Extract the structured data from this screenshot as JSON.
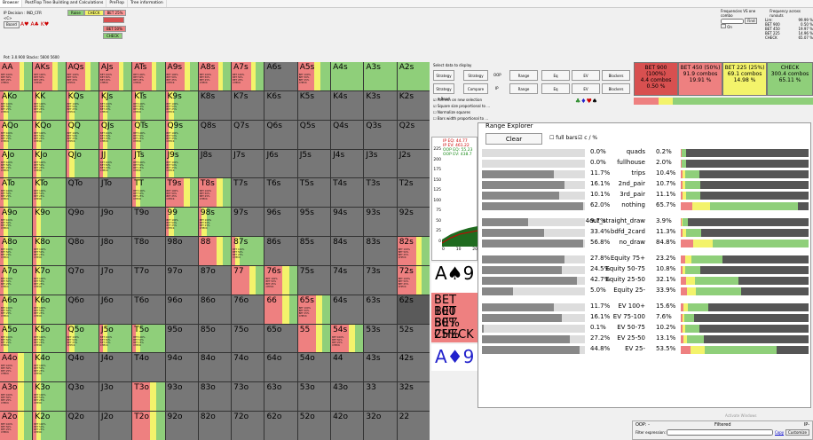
{
  "tabs": [
    "Browser",
    "PostFlop Tree Building and Calculations",
    "PreFlop",
    "Tree information"
  ],
  "info": {
    "decision": "IP Decision : IND_CFR",
    "cards": "<C>",
    "board_btn": "Board",
    "board": "A♥ A♣ K♥",
    "potstacks": "Pot: 3.0.900 Stacks: 5600 5600"
  },
  "legend": [
    {
      "label": "Raise",
      "color": "#7fbf6f"
    },
    {
      "label": "CHECK",
      "color": "#f5f56a"
    },
    {
      "label": "BET 25%",
      "color": "#ff9999"
    },
    {
      "label": "BET 50%",
      "color": "#e06666"
    },
    {
      "label": "CHECK",
      "color": "#7fbf6f"
    }
  ],
  "freq": {
    "title": "Frequencies VS one combo",
    "title2": "Frequency across runouts",
    "find_btn": "Find",
    "lines": [
      "Lim:",
      "BET 900",
      "BET 450",
      "BET 225",
      "CHECK"
    ],
    "vals": [
      "99.99 %",
      "0.50 %",
      "19.97 %",
      "14.96 %",
      "65.07 %"
    ],
    "on": "On"
  },
  "grid": [
    [
      "AA",
      "AKs",
      "AQs",
      "AJs",
      "ATs",
      "A9s",
      "A8s",
      "A7s",
      "A6s",
      "A5s",
      "A4s",
      "A3s",
      "A2s"
    ],
    [
      "AKo",
      "KK",
      "KQs",
      "KJs",
      "KTs",
      "K9s",
      "K8s",
      "K7s",
      "K6s",
      "K5s",
      "K4s",
      "K3s",
      "K2s"
    ],
    [
      "AQo",
      "KQo",
      "QQ",
      "QJs",
      "QTs",
      "Q9s",
      "Q8s",
      "Q7s",
      "Q6s",
      "Q5s",
      "Q4s",
      "Q3s",
      "Q2s"
    ],
    [
      "AJo",
      "KJo",
      "QJo",
      "JJ",
      "JTs",
      "J9s",
      "J8s",
      "J7s",
      "J6s",
      "J5s",
      "J4s",
      "J3s",
      "J2s"
    ],
    [
      "ATo",
      "KTo",
      "QTo",
      "JTo",
      "TT",
      "T9s",
      "T8s",
      "T7s",
      "T6s",
      "T5s",
      "T4s",
      "T3s",
      "T2s"
    ],
    [
      "A9o",
      "K9o",
      "Q9o",
      "J9o",
      "T9o",
      "99",
      "98s",
      "97s",
      "96s",
      "95s",
      "94s",
      "93s",
      "92s"
    ],
    [
      "A8o",
      "K8o",
      "Q8o",
      "J8o",
      "T8o",
      "98o",
      "88",
      "87s",
      "86s",
      "85s",
      "84s",
      "83s",
      "82s"
    ],
    [
      "A7o",
      "K7o",
      "Q7o",
      "J7o",
      "T7o",
      "97o",
      "87o",
      "77",
      "76s",
      "75s",
      "74s",
      "73s",
      "72s"
    ],
    [
      "A6o",
      "K6o",
      "Q6o",
      "J6o",
      "T6o",
      "96o",
      "86o",
      "76o",
      "66",
      "65s",
      "64s",
      "63s",
      "62s"
    ],
    [
      "A5o",
      "K5o",
      "Q5o",
      "J5o",
      "T5o",
      "95o",
      "85o",
      "75o",
      "65o",
      "55",
      "54s",
      "53s",
      "52s"
    ],
    [
      "A4o",
      "K4o",
      "Q4o",
      "J4o",
      "T4o",
      "94o",
      "84o",
      "74o",
      "64o",
      "54o",
      "44",
      "43s",
      "42s"
    ],
    [
      "A3o",
      "K3o",
      "Q3o",
      "J3o",
      "T3o",
      "93o",
      "83o",
      "73o",
      "63o",
      "53o",
      "43o",
      "33",
      "32s"
    ],
    [
      "A2o",
      "K2o",
      "Q2o",
      "J2o",
      "T2o",
      "92o",
      "82o",
      "72o",
      "62o",
      "52o",
      "42o",
      "32o",
      "22"
    ]
  ],
  "cellstats": "BET 100%\nBET 50%\nBET 25%\nCHECK",
  "colors": {
    "green": "#8fcf7a",
    "yellow": "#f3f36b",
    "red": "#ee8080",
    "darkred": "#d85050",
    "gray": "#777",
    "dim": "#5a5a5a"
  },
  "panel": {
    "select_label": "Select data to display",
    "btns": [
      "Strategy",
      "Strategy +EV",
      "OOP",
      "Range",
      "Eq",
      "EV",
      "Blockers",
      "Strategy +Read",
      "Compare",
      "IP",
      "Range",
      "Eq",
      "EV",
      "Blockers"
    ],
    "checks": [
      "Refresh on new selection",
      "Square size proportional to ...",
      "Normalize squares",
      "Bars width proportional to ..."
    ],
    "summary": [
      {
        "a": "BET 900 (100%)",
        "b": "4.4 combos",
        "c": "0.50 %",
        "bg": "#d85050"
      },
      {
        "a": "BET 450 (50%)",
        "b": "91.9 combos",
        "c": "19.91 %",
        "bg": "#ee8080"
      },
      {
        "a": "BET 225 (25%)",
        "b": "69.1 combos",
        "c": "14.98 %",
        "bg": "#f3f36b"
      },
      {
        "a": "CHECK",
        "b": "300.4 combos",
        "c": "65.11 %",
        "bg": "#8fcf7a"
      }
    ],
    "eq": [
      "IP EQ: 44.77",
      "IP EV: 461.22",
      "OOP EQ: 55.23",
      "OOP EV: 438.7"
    ],
    "yaxis": [
      "225",
      "200",
      "175",
      "150",
      "125",
      "100",
      "75",
      "50",
      "25",
      "0"
    ],
    "xaxis": [
      "0",
      "10",
      "20"
    ],
    "bigtext": [
      "A♠9",
      "BET 100",
      "BET 50%",
      "BET 25%",
      "CHECK",
      "A♦9"
    ]
  },
  "re": {
    "title": "Range Explorer",
    "clear": "Clear",
    "fullbars": "full bars",
    "cpct": "c / %",
    "rows": [
      {
        "l": "0.0%",
        "n": "quads",
        "r": "0.2%",
        "lw": 0
      },
      {
        "l": "0.0%",
        "n": "fullhouse",
        "r": "2.0%",
        "lw": 0
      },
      {
        "l": "11.7%",
        "n": "trips",
        "r": "10.4%",
        "lw": 70
      },
      {
        "l": "16.1%",
        "n": "2nd_pair",
        "r": "10.7%",
        "lw": 80
      },
      {
        "l": "10.1%",
        "n": "3rd_pair",
        "r": "11.1%",
        "lw": 75
      },
      {
        "l": "62.0%",
        "n": "nothing",
        "r": "65.7%",
        "lw": 98
      },
      {
        "l": "9.7%",
        "n": "4out_straight_draw",
        "r": "3.9%",
        "lw": 45
      },
      {
        "l": "33.4%",
        "n": "bdfd_2card",
        "r": "11.3%",
        "lw": 60
      },
      {
        "l": "56.8%",
        "n": "no_draw",
        "r": "84.8%",
        "lw": 98
      },
      {
        "l": "27.8%",
        "n": "Equity 75+",
        "r": "23.2%",
        "lw": 80
      },
      {
        "l": "24.5%",
        "n": "Equity 50-75",
        "r": "10.8%",
        "lw": 78
      },
      {
        "l": "42.7%",
        "n": "Equity 25-50",
        "r": "32.1%",
        "lw": 92
      },
      {
        "l": "5.0%",
        "n": "Equity 25-",
        "r": "33.9%",
        "lw": 30
      },
      {
        "l": "11.7%",
        "n": "EV 100+",
        "r": "15.6%",
        "lw": 70
      },
      {
        "l": "16.1%",
        "n": "EV 75-100",
        "r": "7.6%",
        "lw": 78
      },
      {
        "l": "0.1%",
        "n": "EV 50-75",
        "r": "10.2%",
        "lw": 2
      },
      {
        "l": "27.2%",
        "n": "EV 25-50",
        "r": "13.1%",
        "lw": 85
      },
      {
        "l": "44.8%",
        "n": "EV 25-",
        "r": "53.5%",
        "lw": 95
      }
    ]
  },
  "status": {
    "oop": "OOP: -",
    "filtered": "Filtered",
    "ip": "IP-",
    "filter_label": "Filter expression:",
    "copy": "Copy",
    "customize": "Customize",
    "watermark": "Activate Windows"
  }
}
